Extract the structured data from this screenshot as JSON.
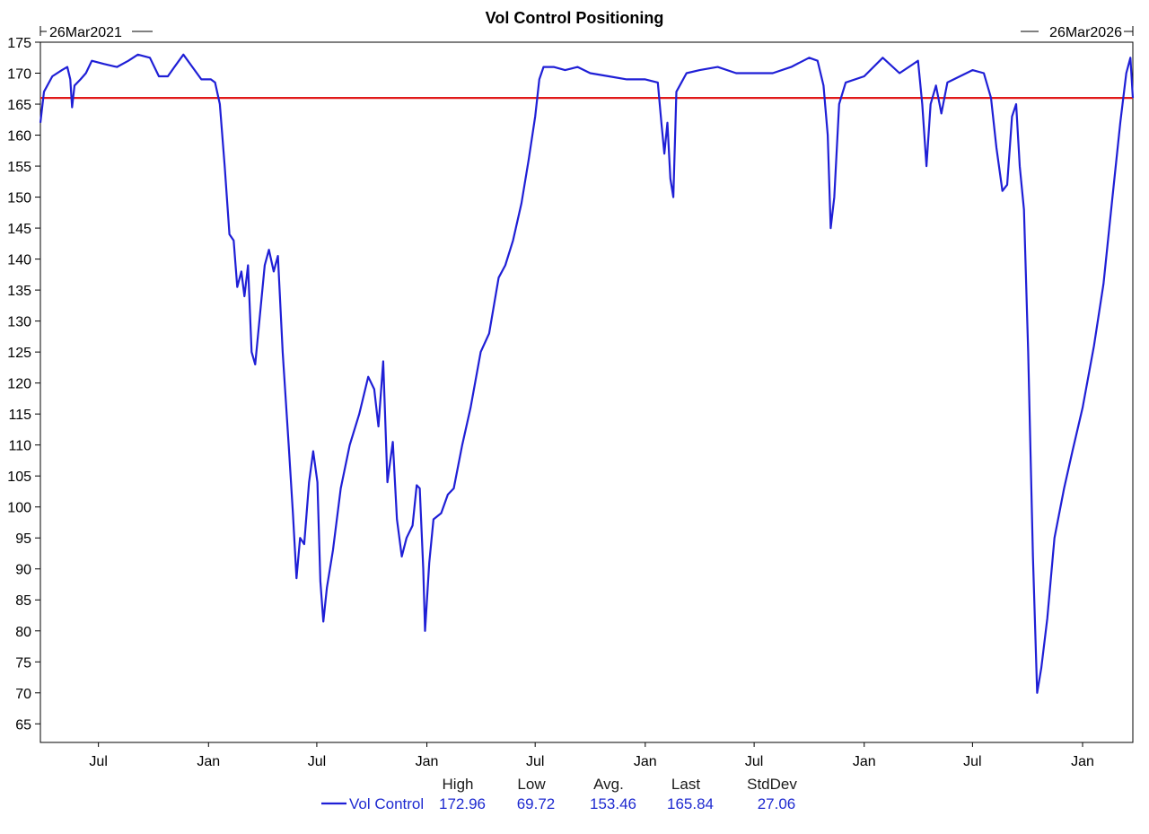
{
  "chart_data": {
    "type": "line",
    "title": "Vol Control Positioning",
    "start_date_label": "26Mar2021",
    "end_date_label": "26Mar2026",
    "x_domain": [
      "2021-03-26",
      "2026-03-26"
    ],
    "ylim": [
      62,
      175
    ],
    "yticks": [
      65,
      70,
      75,
      80,
      85,
      90,
      95,
      100,
      105,
      110,
      115,
      120,
      125,
      130,
      135,
      140,
      145,
      150,
      155,
      160,
      165,
      170,
      175
    ],
    "xticks": [
      {
        "label": "Jul",
        "date": "2021-07-01"
      },
      {
        "label": "Jan",
        "date": "2022-01-01"
      },
      {
        "label": "Jul",
        "date": "2022-07-01"
      },
      {
        "label": "Jan",
        "date": "2023-01-01"
      },
      {
        "label": "Jul",
        "date": "2023-07-01"
      },
      {
        "label": "Jan",
        "date": "2024-01-01"
      },
      {
        "label": "Jul",
        "date": "2024-07-01"
      },
      {
        "label": "Jan",
        "date": "2025-01-01"
      },
      {
        "label": "Jul",
        "date": "2025-07-01"
      },
      {
        "label": "Jan",
        "date": "2026-01-01"
      }
    ],
    "reference_line": {
      "value": 166,
      "color": "#e11a1a"
    },
    "series": [
      {
        "name": "Vol Control",
        "color": "#1f1fd6",
        "points": [
          [
            "2021-03-26",
            162
          ],
          [
            "2021-04-01",
            167
          ],
          [
            "2021-04-15",
            169.5
          ],
          [
            "2021-05-01",
            170.5
          ],
          [
            "2021-05-10",
            171
          ],
          [
            "2021-05-15",
            169
          ],
          [
            "2021-05-18",
            164.5
          ],
          [
            "2021-05-22",
            168
          ],
          [
            "2021-06-01",
            169
          ],
          [
            "2021-06-10",
            170
          ],
          [
            "2021-06-20",
            172
          ],
          [
            "2021-07-10",
            171.5
          ],
          [
            "2021-08-01",
            171
          ],
          [
            "2021-08-20",
            172
          ],
          [
            "2021-09-05",
            173
          ],
          [
            "2021-09-25",
            172.5
          ],
          [
            "2021-10-10",
            169.5
          ],
          [
            "2021-10-25",
            169.5
          ],
          [
            "2021-11-05",
            171
          ],
          [
            "2021-11-20",
            173
          ],
          [
            "2021-12-05",
            171
          ],
          [
            "2021-12-20",
            169
          ],
          [
            "2022-01-05",
            169
          ],
          [
            "2022-01-12",
            168.5
          ],
          [
            "2022-01-20",
            165
          ],
          [
            "2022-01-28",
            155
          ],
          [
            "2022-02-05",
            144
          ],
          [
            "2022-02-12",
            143
          ],
          [
            "2022-02-18",
            135.5
          ],
          [
            "2022-02-25",
            138
          ],
          [
            "2022-03-02",
            134
          ],
          [
            "2022-03-08",
            139
          ],
          [
            "2022-03-14",
            125
          ],
          [
            "2022-03-20",
            123
          ],
          [
            "2022-03-28",
            131
          ],
          [
            "2022-04-05",
            139
          ],
          [
            "2022-04-12",
            141.5
          ],
          [
            "2022-04-20",
            138
          ],
          [
            "2022-04-27",
            140.5
          ],
          [
            "2022-05-05",
            125
          ],
          [
            "2022-05-15",
            110
          ],
          [
            "2022-05-22",
            99
          ],
          [
            "2022-05-28",
            88.5
          ],
          [
            "2022-06-03",
            95
          ],
          [
            "2022-06-10",
            94
          ],
          [
            "2022-06-18",
            104
          ],
          [
            "2022-06-25",
            109
          ],
          [
            "2022-07-02",
            104
          ],
          [
            "2022-07-07",
            88
          ],
          [
            "2022-07-12",
            81.5
          ],
          [
            "2022-07-18",
            87
          ],
          [
            "2022-07-28",
            93
          ],
          [
            "2022-08-10",
            103
          ],
          [
            "2022-08-25",
            110
          ],
          [
            "2022-09-10",
            115
          ],
          [
            "2022-09-25",
            121
          ],
          [
            "2022-10-05",
            119
          ],
          [
            "2022-10-12",
            113
          ],
          [
            "2022-10-20",
            123.5
          ],
          [
            "2022-10-27",
            104
          ],
          [
            "2022-11-05",
            110.5
          ],
          [
            "2022-11-12",
            98
          ],
          [
            "2022-11-20",
            92
          ],
          [
            "2022-11-28",
            95
          ],
          [
            "2022-12-08",
            97
          ],
          [
            "2022-12-15",
            103.5
          ],
          [
            "2022-12-20",
            103
          ],
          [
            "2022-12-26",
            90
          ],
          [
            "2022-12-29",
            80
          ],
          [
            "2023-01-05",
            91
          ],
          [
            "2023-01-12",
            98
          ],
          [
            "2023-01-25",
            99
          ],
          [
            "2023-02-05",
            102
          ],
          [
            "2023-02-15",
            103
          ],
          [
            "2023-03-01",
            110
          ],
          [
            "2023-03-15",
            116
          ],
          [
            "2023-04-01",
            125
          ],
          [
            "2023-04-15",
            128
          ],
          [
            "2023-05-01",
            137
          ],
          [
            "2023-05-12",
            139
          ],
          [
            "2023-05-25",
            143
          ],
          [
            "2023-06-08",
            149
          ],
          [
            "2023-06-20",
            156
          ],
          [
            "2023-07-01",
            163
          ],
          [
            "2023-07-08",
            169
          ],
          [
            "2023-07-15",
            171
          ],
          [
            "2023-08-01",
            171
          ],
          [
            "2023-08-20",
            170.5
          ],
          [
            "2023-09-10",
            171
          ],
          [
            "2023-10-01",
            170
          ],
          [
            "2023-11-01",
            169.5
          ],
          [
            "2023-12-01",
            169
          ],
          [
            "2024-01-01",
            169
          ],
          [
            "2024-01-22",
            168.5
          ],
          [
            "2024-01-28",
            162
          ],
          [
            "2024-02-02",
            157
          ],
          [
            "2024-02-07",
            162
          ],
          [
            "2024-02-12",
            153
          ],
          [
            "2024-02-17",
            150
          ],
          [
            "2024-02-22",
            167
          ],
          [
            "2024-03-10",
            170
          ],
          [
            "2024-04-01",
            170.5
          ],
          [
            "2024-05-01",
            171
          ],
          [
            "2024-06-01",
            170
          ],
          [
            "2024-07-01",
            170
          ],
          [
            "2024-08-01",
            170
          ],
          [
            "2024-09-01",
            171
          ],
          [
            "2024-10-01",
            172.5
          ],
          [
            "2024-10-15",
            172
          ],
          [
            "2024-10-25",
            168
          ],
          [
            "2024-11-01",
            160
          ],
          [
            "2024-11-06",
            145
          ],
          [
            "2024-11-12",
            150
          ],
          [
            "2024-11-20",
            165
          ],
          [
            "2024-12-01",
            168.5
          ],
          [
            "2025-01-01",
            169.5
          ],
          [
            "2025-02-01",
            172.5
          ],
          [
            "2025-03-01",
            170
          ],
          [
            "2025-04-01",
            172
          ],
          [
            "2025-04-08",
            165
          ],
          [
            "2025-04-15",
            155
          ],
          [
            "2025-04-22",
            165
          ],
          [
            "2025-05-01",
            168
          ],
          [
            "2025-05-10",
            163.5
          ],
          [
            "2025-05-20",
            168.5
          ],
          [
            "2025-06-10",
            169.5
          ],
          [
            "2025-07-01",
            170.5
          ],
          [
            "2025-07-20",
            170
          ],
          [
            "2025-08-01",
            166
          ],
          [
            "2025-08-10",
            158
          ],
          [
            "2025-08-20",
            151
          ],
          [
            "2025-08-28",
            152
          ],
          [
            "2025-09-05",
            163
          ],
          [
            "2025-09-12",
            165
          ],
          [
            "2025-09-18",
            155
          ],
          [
            "2025-09-25",
            148
          ],
          [
            "2025-10-02",
            125
          ],
          [
            "2025-10-10",
            92
          ],
          [
            "2025-10-17",
            70
          ],
          [
            "2025-10-24",
            74
          ],
          [
            "2025-11-03",
            82
          ],
          [
            "2025-11-15",
            95
          ],
          [
            "2025-12-01",
            103
          ],
          [
            "2025-12-15",
            109
          ],
          [
            "2026-01-01",
            116
          ],
          [
            "2026-01-20",
            126
          ],
          [
            "2026-02-05",
            136
          ],
          [
            "2026-02-20",
            150
          ],
          [
            "2026-03-05",
            162
          ],
          [
            "2026-03-15",
            170
          ],
          [
            "2026-03-22",
            172.5
          ],
          [
            "2026-03-26",
            166
          ]
        ]
      }
    ],
    "stats": {
      "headers": [
        "High",
        "Low",
        "Avg.",
        "Last",
        "StdDev"
      ],
      "series_label": "Vol Control",
      "values": [
        "172.96",
        "69.72",
        "153.46",
        "165.84",
        "27.06"
      ]
    }
  }
}
